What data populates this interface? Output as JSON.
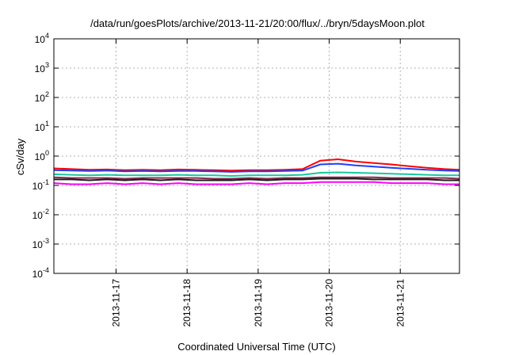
{
  "chart_data": {
    "type": "line",
    "title": "/data/run/goesPlots/archive/2013-11-21/20:00/flux/../bryn/5daysMoon.plot",
    "xlabel": "Coordinated Universal Time (UTC)",
    "ylabel": "cSv/day",
    "yscale": "log",
    "ylim": [
      0.0001,
      10000
    ],
    "xlim": [
      "2013-11-16 03:00",
      "2013-11-21 20:00"
    ],
    "grid": true,
    "y_ticks": [
      {
        "base": "10",
        "exp": "-4",
        "value": 0.0001
      },
      {
        "base": "10",
        "exp": "-3",
        "value": 0.001
      },
      {
        "base": "10",
        "exp": "-2",
        "value": 0.01
      },
      {
        "base": "10",
        "exp": "-1",
        "value": 0.1
      },
      {
        "base": "10",
        "exp": "0",
        "value": 1
      },
      {
        "base": "10",
        "exp": "1",
        "value": 10
      },
      {
        "base": "10",
        "exp": "2",
        "value": 100
      },
      {
        "base": "10",
        "exp": "3",
        "value": 1000
      },
      {
        "base": "10",
        "exp": "4",
        "value": 10000
      }
    ],
    "x_ticks": [
      {
        "label": "2013-11-17",
        "value": "2013-11-17 00:00"
      },
      {
        "label": "2013-11-18",
        "value": "2013-11-18 00:00"
      },
      {
        "label": "2013-11-19",
        "value": "2013-11-19 00:00"
      },
      {
        "label": "2013-11-20",
        "value": "2013-11-20 00:00"
      },
      {
        "label": "2013-11-21",
        "value": "2013-11-21 00:00"
      }
    ],
    "x": [
      "2013-11-16 03:00",
      "2013-11-16 09:00",
      "2013-11-16 15:00",
      "2013-11-16 21:00",
      "2013-11-17 03:00",
      "2013-11-17 09:00",
      "2013-11-17 15:00",
      "2013-11-17 21:00",
      "2013-11-18 03:00",
      "2013-11-18 09:00",
      "2013-11-18 15:00",
      "2013-11-18 21:00",
      "2013-11-19 03:00",
      "2013-11-19 09:00",
      "2013-11-19 15:00",
      "2013-11-19 21:00",
      "2013-11-20 03:00",
      "2013-11-20 09:00",
      "2013-11-20 15:00",
      "2013-11-20 21:00",
      "2013-11-21 03:00",
      "2013-11-21 09:00",
      "2013-11-21 15:00",
      "2013-11-21 20:00"
    ],
    "series": [
      {
        "color": "#ff0000",
        "values": [
          0.38,
          0.36,
          0.34,
          0.35,
          0.33,
          0.34,
          0.33,
          0.35,
          0.34,
          0.33,
          0.32,
          0.33,
          0.33,
          0.34,
          0.36,
          0.7,
          0.78,
          0.65,
          0.58,
          0.52,
          0.45,
          0.4,
          0.36,
          0.34
        ]
      },
      {
        "color": "#1f3fff",
        "values": [
          0.33,
          0.32,
          0.31,
          0.32,
          0.3,
          0.31,
          0.3,
          0.31,
          0.31,
          0.3,
          0.29,
          0.3,
          0.3,
          0.31,
          0.32,
          0.52,
          0.55,
          0.48,
          0.44,
          0.4,
          0.37,
          0.34,
          0.32,
          0.31
        ]
      },
      {
        "color": "#17c7a0",
        "values": [
          0.24,
          0.23,
          0.22,
          0.23,
          0.22,
          0.22,
          0.22,
          0.23,
          0.22,
          0.22,
          0.21,
          0.22,
          0.22,
          0.22,
          0.23,
          0.27,
          0.28,
          0.27,
          0.26,
          0.25,
          0.24,
          0.23,
          0.22,
          0.22
        ]
      },
      {
        "color": "#8a2b4e",
        "values": [
          0.19,
          0.18,
          0.18,
          0.18,
          0.17,
          0.18,
          0.18,
          0.18,
          0.18,
          0.17,
          0.17,
          0.18,
          0.17,
          0.18,
          0.18,
          0.19,
          0.19,
          0.19,
          0.19,
          0.18,
          0.18,
          0.18,
          0.18,
          0.17
        ]
      },
      {
        "color": "#1a1a1a",
        "values": [
          0.16,
          0.16,
          0.15,
          0.16,
          0.15,
          0.16,
          0.15,
          0.16,
          0.15,
          0.15,
          0.15,
          0.16,
          0.15,
          0.16,
          0.16,
          0.17,
          0.17,
          0.17,
          0.16,
          0.16,
          0.16,
          0.16,
          0.15,
          0.15
        ]
      },
      {
        "color": "#ff00ff",
        "values": [
          0.12,
          0.11,
          0.11,
          0.12,
          0.11,
          0.12,
          0.11,
          0.12,
          0.11,
          0.11,
          0.11,
          0.12,
          0.11,
          0.12,
          0.12,
          0.13,
          0.13,
          0.13,
          0.13,
          0.12,
          0.12,
          0.12,
          0.11,
          0.11
        ]
      }
    ]
  }
}
